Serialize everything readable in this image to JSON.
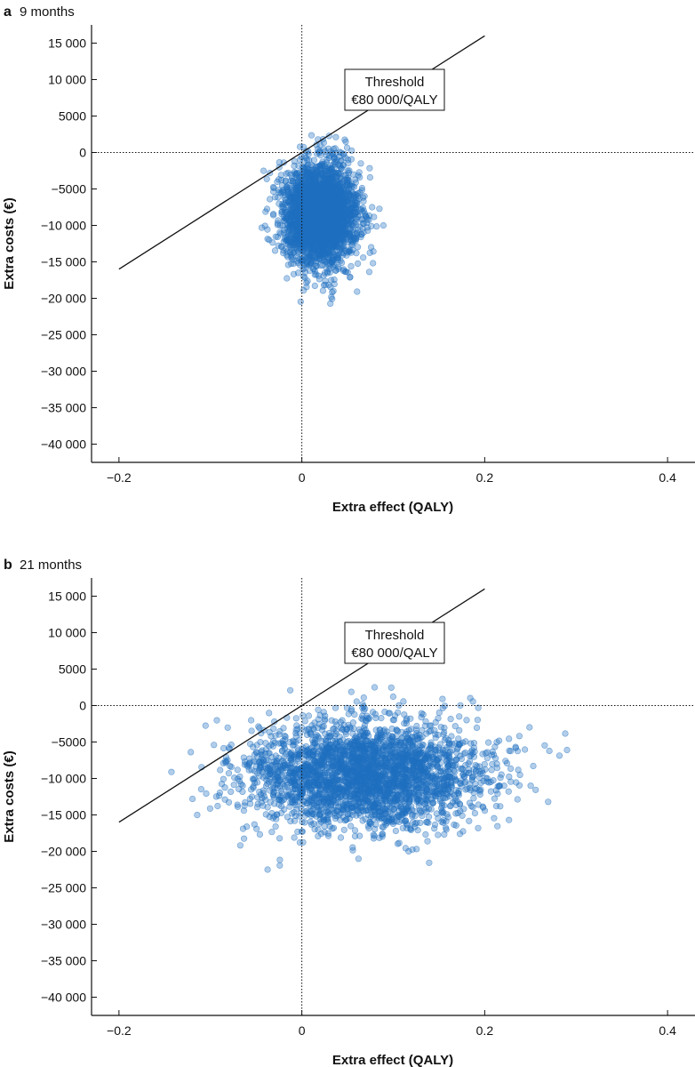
{
  "chart_data": [
    {
      "type": "scatter",
      "panel_label": "a",
      "title": "9 months",
      "xlabel": "Extra effect (QALY)",
      "ylabel": "Extra costs (€)",
      "xlim": [
        -0.23,
        0.43
      ],
      "ylim": [
        -42500,
        17500
      ],
      "x_ticks": [
        -0.2,
        0,
        0.2,
        0.4
      ],
      "x_tick_labels": [
        "−0.2",
        "0",
        "0.2",
        "0.4"
      ],
      "y_ticks": [
        15000,
        10000,
        5000,
        0,
        -5000,
        -10000,
        -15000,
        -20000,
        -25000,
        -30000,
        -35000,
        -40000
      ],
      "y_tick_labels": [
        "15 000",
        "10 000",
        "5000",
        "0",
        "−5000",
        "−10 000",
        "−15 000",
        "−20 000",
        "−25 000",
        "−30 000",
        "−35 000",
        "−40 000"
      ],
      "reference_lines": {
        "x": 0,
        "y": 0,
        "style": "dotted"
      },
      "threshold": {
        "label_line1": "Threshold",
        "label_line2": "€80 000/QALY",
        "wtp_per_qaly": 80000,
        "line_from": [
          -0.2,
          -16000
        ],
        "line_to": [
          0.2,
          16000
        ]
      },
      "cloud": {
        "mean_effect": 0.02,
        "sd_effect": 0.02,
        "mean_cost": -8500,
        "sd_cost": 3500,
        "effect_range": [
          -0.05,
          0.1
        ],
        "cost_range": [
          -21000,
          3000
        ],
        "n_points": 3000,
        "color": "#1f6fbf"
      }
    },
    {
      "type": "scatter",
      "panel_label": "b",
      "title": "21 months",
      "xlabel": "Extra effect (QALY)",
      "ylabel": "Extra costs (€)",
      "xlim": [
        -0.23,
        0.43
      ],
      "ylim": [
        -42500,
        17500
      ],
      "x_ticks": [
        -0.2,
        0,
        0.2,
        0.4
      ],
      "x_tick_labels": [
        "−0.2",
        "0",
        "0.2",
        "0.4"
      ],
      "y_ticks": [
        15000,
        10000,
        5000,
        0,
        -5000,
        -10000,
        -15000,
        -20000,
        -25000,
        -30000,
        -35000,
        -40000
      ],
      "y_tick_labels": [
        "15 000",
        "10 000",
        "5000",
        "0",
        "−5000",
        "−10 000",
        "−15 000",
        "−20 000",
        "−25 000",
        "−30 000",
        "−35 000",
        "−40 000"
      ],
      "reference_lines": {
        "x": 0,
        "y": 0,
        "style": "dotted"
      },
      "threshold": {
        "label_line1": "Threshold",
        "label_line2": "€80 000/QALY",
        "wtp_per_qaly": 80000,
        "line_from": [
          -0.2,
          -16000
        ],
        "line_to": [
          0.2,
          16000
        ]
      },
      "cloud": {
        "mean_effect": 0.07,
        "sd_effect": 0.065,
        "mean_cost": -9500,
        "sd_cost": 3600,
        "effect_range": [
          -0.15,
          0.29
        ],
        "cost_range": [
          -22500,
          2500
        ],
        "n_points": 3000,
        "color": "#1f6fbf"
      }
    }
  ]
}
